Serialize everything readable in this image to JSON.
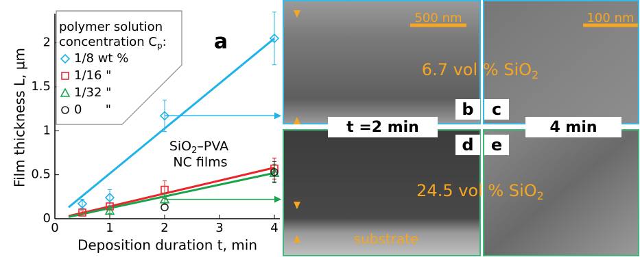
{
  "chart_data": {
    "type": "scatter",
    "xlabel": "Deposition duration t, min",
    "ylabel": "Film thickness L, µm",
    "xlim": [
      0,
      4.1
    ],
    "ylim": [
      0,
      2.3
    ],
    "xticks": [
      0,
      1,
      2,
      3,
      4
    ],
    "yticks": [
      0,
      0.5,
      1,
      1.5,
      2
    ],
    "legend_title": [
      "polymer solution",
      "concentration C"
    ],
    "legend_title_sub": "p",
    "legend_title_end": ":",
    "series": [
      {
        "name": "1/8 wt %",
        "color": "#1fb3e8",
        "marker": "diamond",
        "x": [
          0.5,
          1,
          2,
          4
        ],
        "values": [
          0.17,
          0.24,
          1.17,
          2.05
        ],
        "errors": [
          0.05,
          0.09,
          0.18,
          0.3
        ]
      },
      {
        "name": "1/16 \"",
        "color": "#e8262b",
        "marker": "square",
        "x": [
          0.5,
          1,
          2,
          4
        ],
        "values": [
          0.07,
          0.14,
          0.33,
          0.57
        ],
        "errors": [
          0.02,
          0.04,
          0.1,
          0.12
        ]
      },
      {
        "name": "1/32 \"",
        "color": "#19a34a",
        "marker": "triangle",
        "x": [
          1,
          2,
          4
        ],
        "values": [
          0.09,
          0.22,
          0.52
        ],
        "errors": [
          0.03,
          0.06,
          0.1
        ]
      },
      {
        "name": "0      \"",
        "color": "#222222",
        "marker": "circle",
        "x": [
          2,
          4
        ],
        "values": [
          0.13,
          0.53
        ],
        "errors": [
          null,
          0.12
        ]
      }
    ],
    "fit_lines": [
      {
        "color": "#1fb3e8",
        "x": [
          0.25,
          4
        ],
        "values": [
          0.13,
          2.05
        ]
      },
      {
        "color": "#e8262b",
        "x": [
          0.25,
          4
        ],
        "values": [
          0.03,
          0.58
        ]
      },
      {
        "color": "#19a34a",
        "x": [
          0.25,
          4
        ],
        "values": [
          0.02,
          0.52
        ]
      }
    ],
    "annotations": {
      "panel": "a",
      "material": "SiO",
      "material_sub": "2",
      "material_end": "–PVA",
      "films": "NC films"
    }
  },
  "images": {
    "panels": [
      "b",
      "c",
      "d",
      "e"
    ],
    "scale_bars": [
      "500 nm",
      "100 nm"
    ],
    "time_labels": [
      "t =2 min",
      "4 min"
    ],
    "compositions": [
      {
        "text": "6.7 vol % SiO",
        "sub": "2"
      },
      {
        "text": "24.5 vol % SiO",
        "sub": "2"
      }
    ],
    "substrate": "substrate"
  }
}
